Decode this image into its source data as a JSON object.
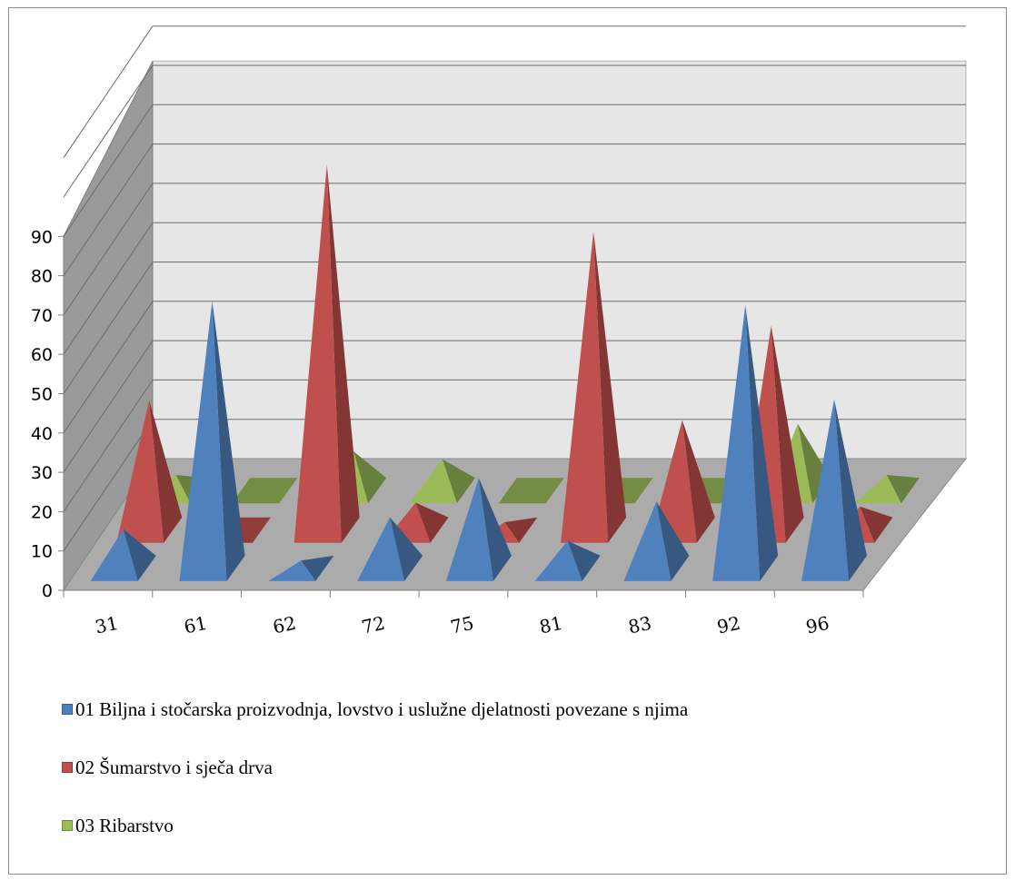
{
  "chart_data": {
    "type": "bar",
    "bar_shape": "pyramid-3d",
    "title": "",
    "xlabel": "",
    "ylabel": "",
    "categories": [
      "31",
      "61",
      "62",
      "72",
      "75",
      "81",
      "83",
      "92",
      "96"
    ],
    "ylim": [
      0,
      90
    ],
    "yticks": [
      "0",
      "10",
      "20",
      "30",
      "40",
      "50",
      "60",
      "70",
      "80",
      "90"
    ],
    "grid": true,
    "legend_position": "bottom",
    "series": [
      {
        "name": "01 Biljna i stočarska  proizvodnja, lovstvo i uslužne djelatnosti povezane s njima",
        "color": "#4f81bd",
        "values": [
          10,
          68,
          2,
          13,
          23,
          7,
          17,
          67,
          43
        ]
      },
      {
        "name": "02 Šumarstvo i sječa drva",
        "color": "#c0504d",
        "values": [
          33,
          0,
          93,
          7,
          2,
          76,
          28,
          52,
          6
        ]
      },
      {
        "name": "03 Ribarstvo",
        "color": "#9bbb59",
        "values": [
          4,
          0,
          10,
          8,
          0,
          0,
          0,
          17,
          4
        ]
      }
    ]
  }
}
